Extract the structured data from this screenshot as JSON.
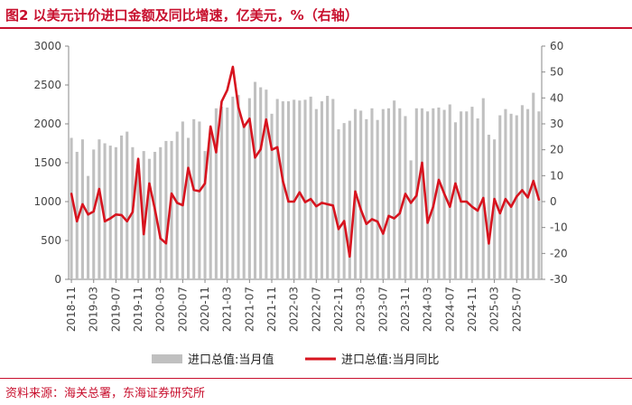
{
  "title": "图2  以美元计价进口金额及同比增速，亿美元，%（右轴）",
  "source": "资料来源：海关总署，东海证券研究所",
  "colors": {
    "bar": "#c0c0c0",
    "line": "#d7141f",
    "accent": "#c8102e"
  },
  "chart_data": {
    "type": "bar+line",
    "x_tick_labels": [
      "2018-11",
      "2019-03",
      "2019-07",
      "2019-11",
      "2020-03",
      "2020-07",
      "2020-11",
      "2021-03",
      "2021-07",
      "2021-11",
      "2022-03",
      "2022-07",
      "2022-11",
      "2023-03",
      "2023-07",
      "2023-11",
      "2024-03",
      "2024-07",
      "2024-11",
      "2025-03",
      "2025-07"
    ],
    "left_axis": {
      "ylim": [
        0,
        3000
      ],
      "ticks": [
        0,
        500,
        1000,
        1500,
        2000,
        2500,
        3000
      ]
    },
    "right_axis": {
      "ylim": [
        -30,
        60
      ],
      "ticks": [
        -30,
        -20,
        -10,
        0,
        10,
        20,
        30,
        40,
        50,
        60
      ]
    },
    "grid": false,
    "legend_position": "bottom",
    "series": [
      {
        "name": "进口总值:当月值",
        "type": "bar",
        "axis": "left",
        "values": [
          1820,
          1640,
          1800,
          1330,
          1670,
          1800,
          1750,
          1720,
          1700,
          1850,
          1900,
          1700,
          1430,
          1650,
          1550,
          1640,
          1700,
          1780,
          1780,
          1900,
          2030,
          1820,
          2060,
          2030,
          1650,
          1900,
          2200,
          2220,
          2210,
          2350,
          2370,
          2000,
          2330,
          2540,
          2470,
          2440,
          2130,
          2320,
          2290,
          2290,
          2310,
          2300,
          2310,
          2350,
          2190,
          2290,
          2360,
          2320,
          1930,
          2010,
          2040,
          2190,
          2170,
          2060,
          2200,
          2050,
          2190,
          2200,
          2300,
          2200,
          2100,
          1530,
          2200,
          2200,
          2160,
          2200,
          2210,
          2180,
          2250,
          2020,
          2160,
          2160,
          2220,
          2070,
          2330,
          1860,
          1800,
          2110,
          2190,
          2130,
          2110,
          2240,
          2190,
          2400,
          2160
        ],
        "label_indices": [
          0,
          4,
          8,
          12,
          16,
          20,
          24,
          28,
          32,
          36,
          40,
          44,
          48,
          52,
          56,
          60,
          64,
          68,
          72,
          76,
          80
        ]
      },
      {
        "name": "进口总值:当月同比",
        "type": "line",
        "axis": "right",
        "values": [
          3.0,
          -7.6,
          -1.0,
          -5.0,
          -3.8,
          4.9,
          -7.6,
          -6.5,
          -5.0,
          -5.2,
          -7.6,
          -4.0,
          16.5,
          -12.6,
          7.0,
          -3.0,
          -14.2,
          -16.1,
          3.1,
          -0.5,
          -1.4,
          13.0,
          4.5,
          4.0,
          7.0,
          29.0,
          19.0,
          38.6,
          43.0,
          52.0,
          36.5,
          28.8,
          32.0,
          17.0,
          20.2,
          31.7,
          20.0,
          21.0,
          8.0,
          0.0,
          0.0,
          3.6,
          -0.2,
          1.0,
          -1.8,
          -0.5,
          -1.0,
          -1.5,
          -10.6,
          -7.5,
          -21.2,
          3.9,
          -3.0,
          -8.6,
          -6.8,
          -7.7,
          -12.4,
          -5.5,
          -6.5,
          -4.5,
          3.0,
          -0.5,
          2.3,
          15.0,
          -8.2,
          -2.0,
          8.4,
          3.0,
          -2.0,
          7.0,
          0.0,
          0.0,
          -2.0,
          -3.5,
          1.4,
          -16.2,
          1.0,
          -4.5,
          1.0,
          -2.0,
          2.0,
          4.4,
          1.6,
          8.0,
          0.8
        ]
      }
    ]
  }
}
